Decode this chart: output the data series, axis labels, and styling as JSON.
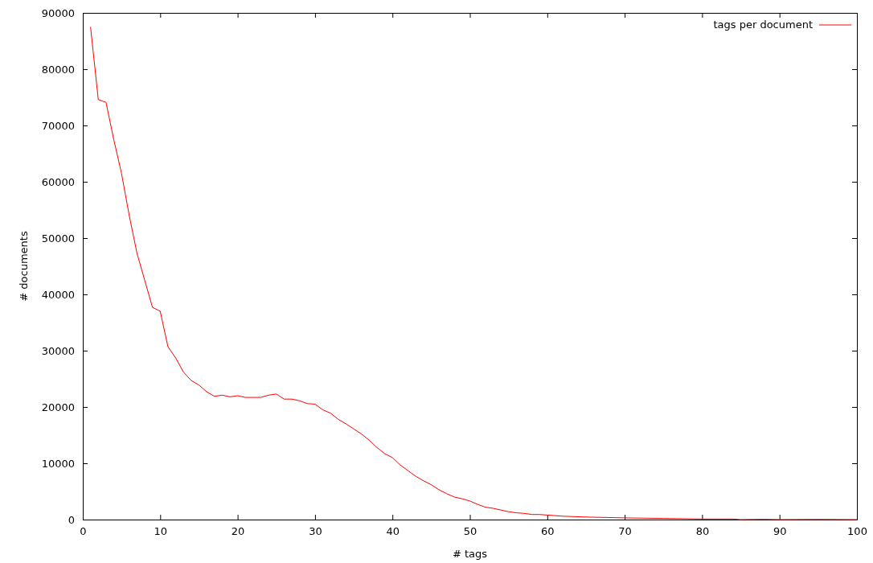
{
  "chart_data": {
    "type": "line",
    "xlabel": "# tags",
    "ylabel": "# documents",
    "xlim": [
      0,
      100
    ],
    "ylim": [
      0,
      90000
    ],
    "xticks": [
      0,
      10,
      20,
      30,
      40,
      50,
      60,
      70,
      80,
      90,
      100
    ],
    "yticks": [
      0,
      10000,
      20000,
      30000,
      40000,
      50000,
      60000,
      70000,
      80000,
      90000
    ],
    "grid": false,
    "legend": "top right",
    "marker": "none",
    "line_style": "solid",
    "series": [
      {
        "name": "tags per document",
        "color": "#ff0000",
        "x": [
          1,
          2,
          3,
          4,
          5,
          6,
          7,
          8,
          9,
          10,
          11,
          12,
          13,
          14,
          15,
          16,
          17,
          18,
          19,
          20,
          21,
          22,
          23,
          24,
          25,
          26,
          27,
          28,
          29,
          30,
          31,
          32,
          33,
          34,
          35,
          36,
          37,
          38,
          39,
          40,
          41,
          42,
          43,
          44,
          45,
          46,
          47,
          48,
          49,
          50,
          51,
          52,
          53,
          54,
          55,
          56,
          57,
          58,
          59,
          60,
          62,
          65,
          70,
          75,
          80,
          84,
          85,
          88,
          90,
          95,
          100
        ],
        "values": [
          87500,
          74600,
          74100,
          67500,
          61500,
          54000,
          47300,
          42500,
          37700,
          37000,
          30700,
          28700,
          26200,
          24700,
          23900,
          22700,
          21900,
          22100,
          21800,
          22000,
          21700,
          21700,
          21700,
          22100,
          22300,
          21400,
          21400,
          21100,
          20600,
          20500,
          19500,
          18900,
          17800,
          17000,
          16100,
          15200,
          14100,
          12800,
          11700,
          11000,
          9700,
          8700,
          7700,
          6900,
          6200,
          5300,
          4600,
          4000,
          3700,
          3300,
          2700,
          2200,
          2000,
          1700,
          1400,
          1200,
          1100,
          900,
          900,
          800,
          600,
          450,
          300,
          200,
          100,
          100,
          0,
          50,
          0,
          30,
          0
        ]
      }
    ]
  }
}
